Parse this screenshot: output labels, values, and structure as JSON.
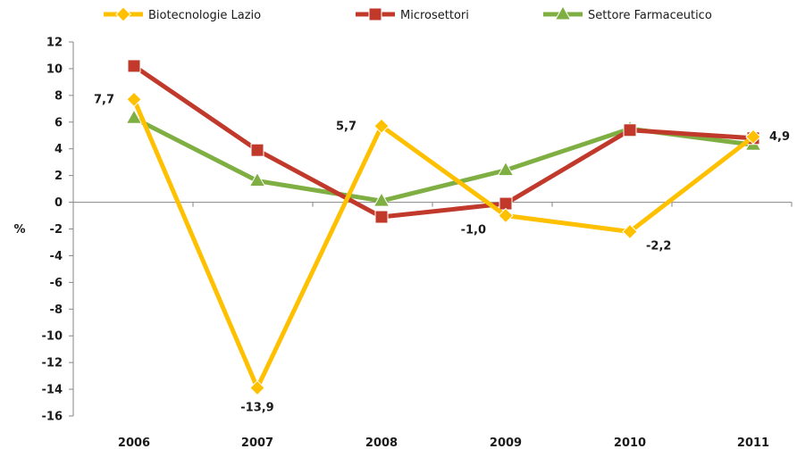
{
  "chart_data": {
    "type": "line",
    "title": "",
    "xlabel": "",
    "ylabel": "%",
    "categories": [
      "2006",
      "2007",
      "2008",
      "2009",
      "2010",
      "2011"
    ],
    "ylim": [
      -16,
      12
    ],
    "yticks": [
      12,
      10,
      8,
      6,
      4,
      2,
      0,
      -2,
      -4,
      -6,
      -8,
      -10,
      -12,
      -14,
      -16
    ],
    "grid": false,
    "legend_position": "top",
    "series": [
      {
        "name": "Biotecnologie Lazio",
        "color": "#FFC000",
        "marker": "diamond",
        "values": [
          7.7,
          -13.9,
          5.7,
          -1.0,
          -2.2,
          4.9
        ],
        "labels": [
          "7,7",
          "-13,9",
          "5,7",
          "-1,0",
          "-2,2",
          "4,9"
        ]
      },
      {
        "name": "Microsettori",
        "color": "#C0392B",
        "marker": "square",
        "values": [
          10.2,
          3.9,
          -1.1,
          -0.1,
          5.4,
          4.8
        ]
      },
      {
        "name": "Settore Farmaceutico",
        "color": "#7FAF42",
        "marker": "triangle",
        "values": [
          6.3,
          1.6,
          0.1,
          2.4,
          5.5,
          4.3
        ]
      }
    ]
  }
}
